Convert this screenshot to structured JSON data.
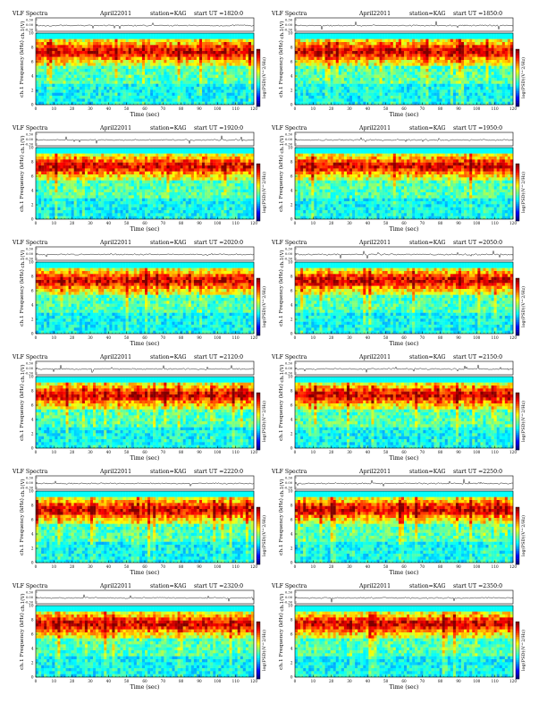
{
  "figure": {
    "header_left": "VLF Spectra",
    "date": "April22011",
    "station": "station=KAG",
    "time_axis_label": "Time (sec)",
    "wave_axis_label": "ch.1(V)",
    "freq_axis_label": "ch.1 Frequency (kHz)",
    "colorbar_label": "log(PSD)(V^2/Hz)"
  },
  "chart_data": [
    {
      "type": "heatmap",
      "start_ut": "start UT =1820:0",
      "x_range": [
        0,
        120
      ],
      "y_range": [
        0,
        10
      ],
      "x_ticks": [
        0,
        10,
        20,
        30,
        40,
        50,
        60,
        70,
        80,
        90,
        100,
        110,
        120
      ],
      "y_ticks": [
        0,
        2,
        4,
        6,
        8,
        10
      ],
      "wave_ticks": [
        "0.30",
        "0.00",
        "-0.30"
      ]
    },
    {
      "type": "heatmap",
      "start_ut": "start UT =1850:0",
      "x_range": [
        0,
        120
      ],
      "y_range": [
        0,
        10
      ],
      "x_ticks": [
        0,
        10,
        20,
        30,
        40,
        50,
        60,
        70,
        80,
        90,
        100,
        110,
        120
      ],
      "y_ticks": [
        0,
        2,
        4,
        6,
        8,
        10
      ],
      "wave_ticks": [
        "0.30",
        "0.00",
        "-0.30"
      ]
    },
    {
      "type": "heatmap",
      "start_ut": "start UT =1920:0",
      "x_range": [
        0,
        120
      ],
      "y_range": [
        0,
        10
      ],
      "x_ticks": [
        0,
        10,
        20,
        30,
        40,
        50,
        60,
        70,
        80,
        90,
        100,
        110,
        120
      ],
      "y_ticks": [
        0,
        2,
        4,
        6,
        8,
        10
      ],
      "wave_ticks": [
        "0.30",
        "0.00",
        "-0.30"
      ]
    },
    {
      "type": "heatmap",
      "start_ut": "start UT =1950:0",
      "x_range": [
        0,
        120
      ],
      "y_range": [
        0,
        10
      ],
      "x_ticks": [
        0,
        10,
        20,
        30,
        40,
        50,
        60,
        70,
        80,
        90,
        100,
        110,
        120
      ],
      "y_ticks": [
        0,
        2,
        4,
        6,
        8,
        10
      ],
      "wave_ticks": [
        "0.30",
        "0.00",
        "-0.30"
      ]
    },
    {
      "type": "heatmap",
      "start_ut": "start UT =2020:0",
      "x_range": [
        0,
        120
      ],
      "y_range": [
        0,
        10
      ],
      "x_ticks": [
        0,
        10,
        20,
        30,
        40,
        50,
        60,
        70,
        80,
        90,
        100,
        110,
        120
      ],
      "y_ticks": [
        0,
        2,
        4,
        6,
        8,
        10
      ],
      "wave_ticks": [
        "0.30",
        "0.00",
        "-0.30"
      ]
    },
    {
      "type": "heatmap",
      "start_ut": "start UT =2050:0",
      "x_range": [
        0,
        120
      ],
      "y_range": [
        0,
        10
      ],
      "x_ticks": [
        0,
        10,
        20,
        30,
        40,
        50,
        60,
        70,
        80,
        90,
        100,
        110,
        120
      ],
      "y_ticks": [
        0,
        2,
        4,
        6,
        8,
        10
      ],
      "wave_ticks": [
        "0.30",
        "0.00",
        "-0.30"
      ]
    },
    {
      "type": "heatmap",
      "start_ut": "start UT =2120:0",
      "x_range": [
        0,
        120
      ],
      "y_range": [
        0,
        10
      ],
      "x_ticks": [
        0,
        10,
        20,
        30,
        40,
        50,
        60,
        70,
        80,
        90,
        100,
        110,
        120
      ],
      "y_ticks": [
        0,
        2,
        4,
        6,
        8,
        10
      ],
      "wave_ticks": [
        "0.30",
        "0.00",
        "-0.30"
      ]
    },
    {
      "type": "heatmap",
      "start_ut": "start UT =2150:0",
      "x_range": [
        0,
        120
      ],
      "y_range": [
        0,
        10
      ],
      "x_ticks": [
        0,
        10,
        20,
        30,
        40,
        50,
        60,
        70,
        80,
        90,
        100,
        110,
        120
      ],
      "y_ticks": [
        0,
        2,
        4,
        6,
        8,
        10
      ],
      "wave_ticks": [
        "0.30",
        "0.00",
        "-0.30"
      ]
    },
    {
      "type": "heatmap",
      "start_ut": "start UT =2220:0",
      "x_range": [
        0,
        120
      ],
      "y_range": [
        0,
        10
      ],
      "x_ticks": [
        0,
        10,
        20,
        30,
        40,
        50,
        60,
        70,
        80,
        90,
        100,
        110,
        120
      ],
      "y_ticks": [
        0,
        2,
        4,
        6,
        8,
        10
      ],
      "wave_ticks": [
        "0.30",
        "0.00",
        "-0.30"
      ]
    },
    {
      "type": "heatmap",
      "start_ut": "start UT =2250:0",
      "x_range": [
        0,
        120
      ],
      "y_range": [
        0,
        10
      ],
      "x_ticks": [
        0,
        10,
        20,
        30,
        40,
        50,
        60,
        70,
        80,
        90,
        100,
        110,
        120
      ],
      "y_ticks": [
        0,
        2,
        4,
        6,
        8,
        10
      ],
      "wave_ticks": [
        "0.30",
        "0.00",
        "-0.30"
      ]
    },
    {
      "type": "heatmap",
      "start_ut": "start UT =2320:0",
      "x_range": [
        0,
        120
      ],
      "y_range": [
        0,
        10
      ],
      "x_ticks": [
        0,
        10,
        20,
        30,
        40,
        50,
        60,
        70,
        80,
        90,
        100,
        110,
        120
      ],
      "y_ticks": [
        0,
        2,
        4,
        6,
        8,
        10
      ],
      "wave_ticks": [
        "0.30",
        "0.00",
        "-0.30"
      ]
    },
    {
      "type": "heatmap",
      "start_ut": "start UT =2350:0",
      "x_range": [
        0,
        120
      ],
      "y_range": [
        0,
        10
      ],
      "x_ticks": [
        0,
        10,
        20,
        30,
        40,
        50,
        60,
        70,
        80,
        90,
        100,
        110,
        120
      ],
      "y_ticks": [
        0,
        2,
        4,
        6,
        8,
        10
      ],
      "wave_ticks": [
        "0.30",
        "0.00",
        "-0.30"
      ]
    }
  ]
}
